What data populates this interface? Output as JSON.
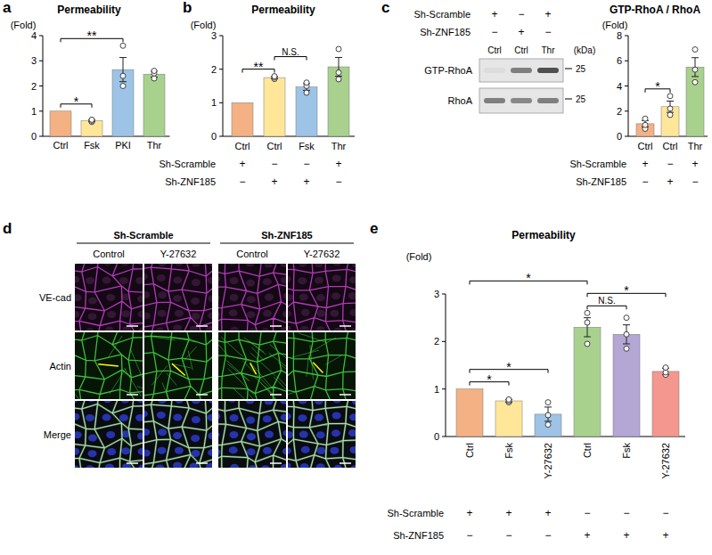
{
  "chart_data": [
    {
      "panel": "a",
      "type": "bar",
      "title": "Permeability",
      "y_label": "(Fold)",
      "categories": [
        "Ctrl",
        "Fsk",
        "PKI",
        "Thr"
      ],
      "values": [
        1,
        0.62,
        2.65,
        2.47
      ],
      "errors": [
        null,
        0.04,
        0.48,
        0.12
      ],
      "points": [
        [],
        [
          0.57,
          0.62,
          0.66
        ],
        [
          2.0,
          2.4,
          3.6
        ],
        [
          2.3,
          2.5,
          2.6
        ]
      ],
      "colors": [
        "#f4b183",
        "#ffe699",
        "#9dc3e6",
        "#a9d18e"
      ],
      "ylim": [
        0,
        4
      ],
      "yticks": [
        0,
        1,
        2,
        3,
        4
      ],
      "significance": [
        {
          "from": 0,
          "to": 1,
          "label": "*"
        },
        {
          "from": 0,
          "to": 2,
          "label": "**"
        }
      ]
    },
    {
      "panel": "b",
      "type": "bar",
      "title": "Permeability",
      "y_label": "(Fold)",
      "categories": [
        "Ctrl",
        "Ctrl",
        "Fsk",
        "Thr"
      ],
      "values": [
        1,
        1.75,
        1.47,
        2.07
      ],
      "errors": [
        null,
        0.03,
        0.1,
        0.28
      ],
      "points": [
        [],
        [
          1.71,
          1.75,
          1.79
        ],
        [
          1.3,
          1.5,
          1.6
        ],
        [
          1.7,
          1.9,
          2.6
        ]
      ],
      "colors": [
        "#f4b183",
        "#ffe699",
        "#9dc3e6",
        "#a9d18e"
      ],
      "ylim": [
        0,
        3
      ],
      "yticks": [
        0,
        1,
        2,
        3
      ],
      "conditions": [
        {
          "label": "Sh-Scramble",
          "marks": [
            "+",
            "−",
            "−",
            "+"
          ]
        },
        {
          "label": "Sh-ZNF185",
          "marks": [
            "−",
            "+",
            "+",
            "−"
          ]
        }
      ],
      "significance": [
        {
          "from": 0,
          "to": 1,
          "label": "**"
        },
        {
          "from": 1,
          "to": 2,
          "label": "N.S."
        }
      ]
    },
    {
      "type": "bar",
      "title": "GTP-RhoA / RhoA",
      "y_label": "(Fold)",
      "categories": [
        "Ctrl",
        "Ctrl",
        "Thr"
      ],
      "values": [
        1.0,
        2.35,
        5.5
      ],
      "errors": [
        0.25,
        0.45,
        0.75
      ],
      "points": [
        [
          0.6,
          0.9,
          1.4
        ],
        [
          1.7,
          2.2,
          3.2
        ],
        [
          4.3,
          5.3,
          6.9
        ]
      ],
      "colors": [
        "#f4b183",
        "#ffe699",
        "#a9d18e"
      ],
      "ylim": [
        0,
        8
      ],
      "yticks": [
        0,
        2,
        4,
        6,
        8
      ],
      "conditions": [
        {
          "label": "Sh-Scramble",
          "marks": [
            "+",
            "−",
            "+"
          ]
        },
        {
          "label": "Sh-ZNF185",
          "marks": [
            "−",
            "+",
            "−"
          ]
        }
      ],
      "significance": [
        {
          "from": 0,
          "to": 1,
          "label": "*"
        }
      ]
    },
    {
      "panel": "e",
      "type": "bar",
      "title": "Permeability",
      "y_label": "(Fold)",
      "categories": [
        "Ctrl",
        "Fsk",
        "Y-27632",
        "Ctrl",
        "Fsk",
        "Y-27632"
      ],
      "values": [
        1,
        0.75,
        0.47,
        2.3,
        2.15,
        1.37
      ],
      "errors": [
        null,
        0.03,
        0.15,
        0.2,
        0.2,
        0.07
      ],
      "points": [
        [],
        [
          0.72,
          0.75,
          0.78
        ],
        [
          0.25,
          0.45,
          0.72
        ],
        [
          1.95,
          2.4,
          2.6
        ],
        [
          1.85,
          2.15,
          2.5
        ],
        [
          1.3,
          1.35,
          1.45
        ]
      ],
      "colors": [
        "#f4b183",
        "#ffe699",
        "#9dc3e6",
        "#a9d18e",
        "#b4a7d6",
        "#f4978e"
      ],
      "ylim": [
        0,
        3
      ],
      "yticks": [
        0,
        1,
        2,
        3
      ],
      "conditions": [
        {
          "label": "Sh-Scramble",
          "marks": [
            "+",
            "+",
            "+",
            "−",
            "−",
            "−"
          ]
        },
        {
          "label": "Sh-ZNF185",
          "marks": [
            "−",
            "−",
            "−",
            "+",
            "+",
            "+"
          ]
        }
      ],
      "significance": [
        {
          "from": 0,
          "to": 1,
          "label": "*"
        },
        {
          "from": 0,
          "to": 2,
          "label": "*"
        },
        {
          "from": 0,
          "to": 3,
          "label": "*"
        },
        {
          "from": 3,
          "to": 4,
          "label": "N.S."
        },
        {
          "from": 3,
          "to": 5,
          "label": "*"
        }
      ]
    }
  ],
  "blot": {
    "panel": "c",
    "conditions": [
      {
        "label": "Sh-Scramble",
        "marks": [
          "+",
          "−",
          "+"
        ]
      },
      {
        "label": "Sh-ZNF185",
        "marks": [
          "−",
          "+",
          "−"
        ]
      }
    ],
    "lanes": [
      "Ctrl",
      "Ctrl",
      "Thr"
    ],
    "rows": [
      "GTP-RhoA",
      "RhoA"
    ],
    "unit": "(kDa)",
    "markers": [
      25,
      25
    ]
  },
  "microscopy": {
    "panel": "d",
    "groups": [
      {
        "label": "Sh-Scramble",
        "columns": [
          "Control",
          "Y-27632"
        ]
      },
      {
        "label": "Sh-ZNF185",
        "columns": [
          "Control",
          "Y-27632"
        ]
      }
    ],
    "rows": [
      "VE-cad",
      "Actin",
      "Merge"
    ]
  }
}
